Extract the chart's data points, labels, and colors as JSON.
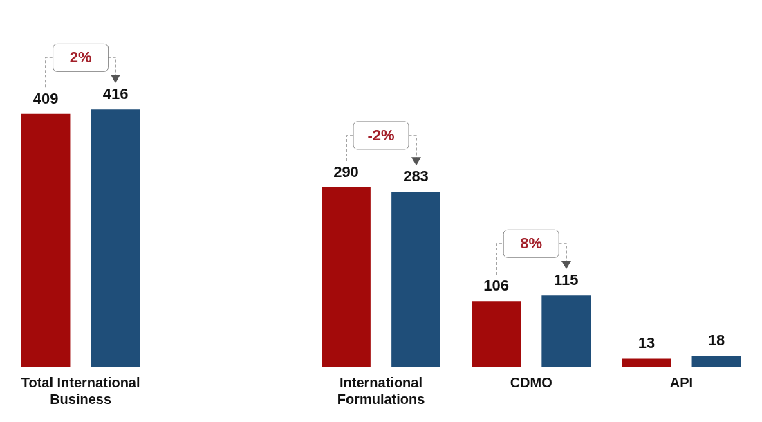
{
  "chart_data": {
    "type": "bar",
    "categories": [
      "Total International Business",
      null,
      "International Formulations",
      "CDMO",
      "API"
    ],
    "series": [
      {
        "color": "#a30a0a",
        "values": [
          409,
          null,
          290,
          106,
          13
        ]
      },
      {
        "color": "#1f4e79",
        "values": [
          416,
          null,
          283,
          115,
          18
        ]
      }
    ],
    "data_labels": true,
    "grid": false,
    "legend": false,
    "annotations": [
      "2%",
      "-2%",
      "8%"
    ]
  }
}
